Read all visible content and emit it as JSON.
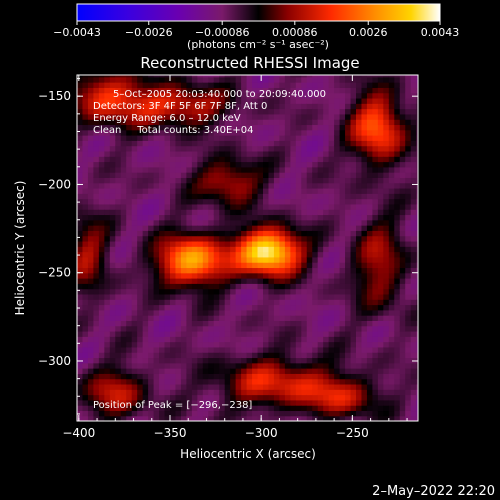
{
  "chart_data": {
    "type": "heatmap",
    "title": "Reconstructed RHESSI Image",
    "xlabel": "Heliocentric X (arcsec)",
    "ylabel": "Heliocentric Y (arcsec)",
    "xlim": [
      -401,
      -214
    ],
    "ylim": [
      -334,
      -138
    ],
    "x_ticks": [
      {
        "value": -400,
        "label": "−400"
      },
      {
        "value": -350,
        "label": "−350"
      },
      {
        "value": -300,
        "label": "−300"
      },
      {
        "value": -250,
        "label": "−250"
      }
    ],
    "y_ticks": [
      {
        "value": -150,
        "label": "−150"
      },
      {
        "value": -200,
        "label": "−200"
      },
      {
        "value": -250,
        "label": "−250"
      },
      {
        "value": -300,
        "label": "−300"
      }
    ],
    "colorbar": {
      "min": -0.0043,
      "max": 0.0043,
      "ticks": [
        {
          "value": -0.0043,
          "label": "−0.0043"
        },
        {
          "value": -0.0026,
          "label": "−0.0026"
        },
        {
          "value": -0.00086,
          "label": "−0.00086"
        },
        {
          "value": 0.00086,
          "label": "0.00086"
        },
        {
          "value": 0.0026,
          "label": "0.0026"
        },
        {
          "value": 0.0043,
          "label": "0.0043"
        }
      ],
      "unit_label": "(photons cm⁻² s⁻¹ asec⁻²)",
      "colors": [
        "#0000ff",
        "#6a00b0",
        "#7a1a6a",
        "#000000",
        "#8a0000",
        "#ff2a00",
        "#ff8c00",
        "#ffd400",
        "#ffffff"
      ]
    },
    "annotations": {
      "time_range": "5–Oct–2005 20:03:40.000 to 20:09:40.000",
      "detectors": "Detectors: 3F 4F 5F 6F 7F 8F, Att 0",
      "energy_range": "Energy Range: 6.0 – 12.0 keV",
      "clean_counts": "Clean     Total counts: 3.40E+04",
      "peak_position": "Position of Peak = [−296,−238]"
    },
    "sources": [
      {
        "x": -296,
        "y": -238,
        "value": 0.0043,
        "sx": 12,
        "sy": 9
      },
      {
        "x": -338,
        "y": -243,
        "value": 0.0031,
        "sx": 13,
        "sy": 10
      },
      {
        "x": -236,
        "y": -168,
        "value": 0.0022,
        "sx": 10,
        "sy": 14
      },
      {
        "x": -383,
        "y": -150,
        "value": 0.0016,
        "sx": 14,
        "sy": 11
      },
      {
        "x": -345,
        "y": -155,
        "value": 0.0015,
        "sx": 18,
        "sy": 8
      },
      {
        "x": -318,
        "y": -198,
        "value": 0.0012,
        "sx": 12,
        "sy": 9
      },
      {
        "x": -292,
        "y": -312,
        "value": 0.0014,
        "sx": 22,
        "sy": 10
      },
      {
        "x": -380,
        "y": -318,
        "value": 0.0011,
        "sx": 12,
        "sy": 10
      },
      {
        "x": -255,
        "y": -320,
        "value": 0.001,
        "sx": 14,
        "sy": 8
      },
      {
        "x": -235,
        "y": -245,
        "value": 0.0009,
        "sx": 10,
        "sy": 18
      },
      {
        "x": -395,
        "y": -240,
        "value": 0.0008,
        "sx": 8,
        "sy": 16
      }
    ],
    "background_level": -0.0008,
    "grid": false
  },
  "timestamp": "2–May–2022 22:20"
}
